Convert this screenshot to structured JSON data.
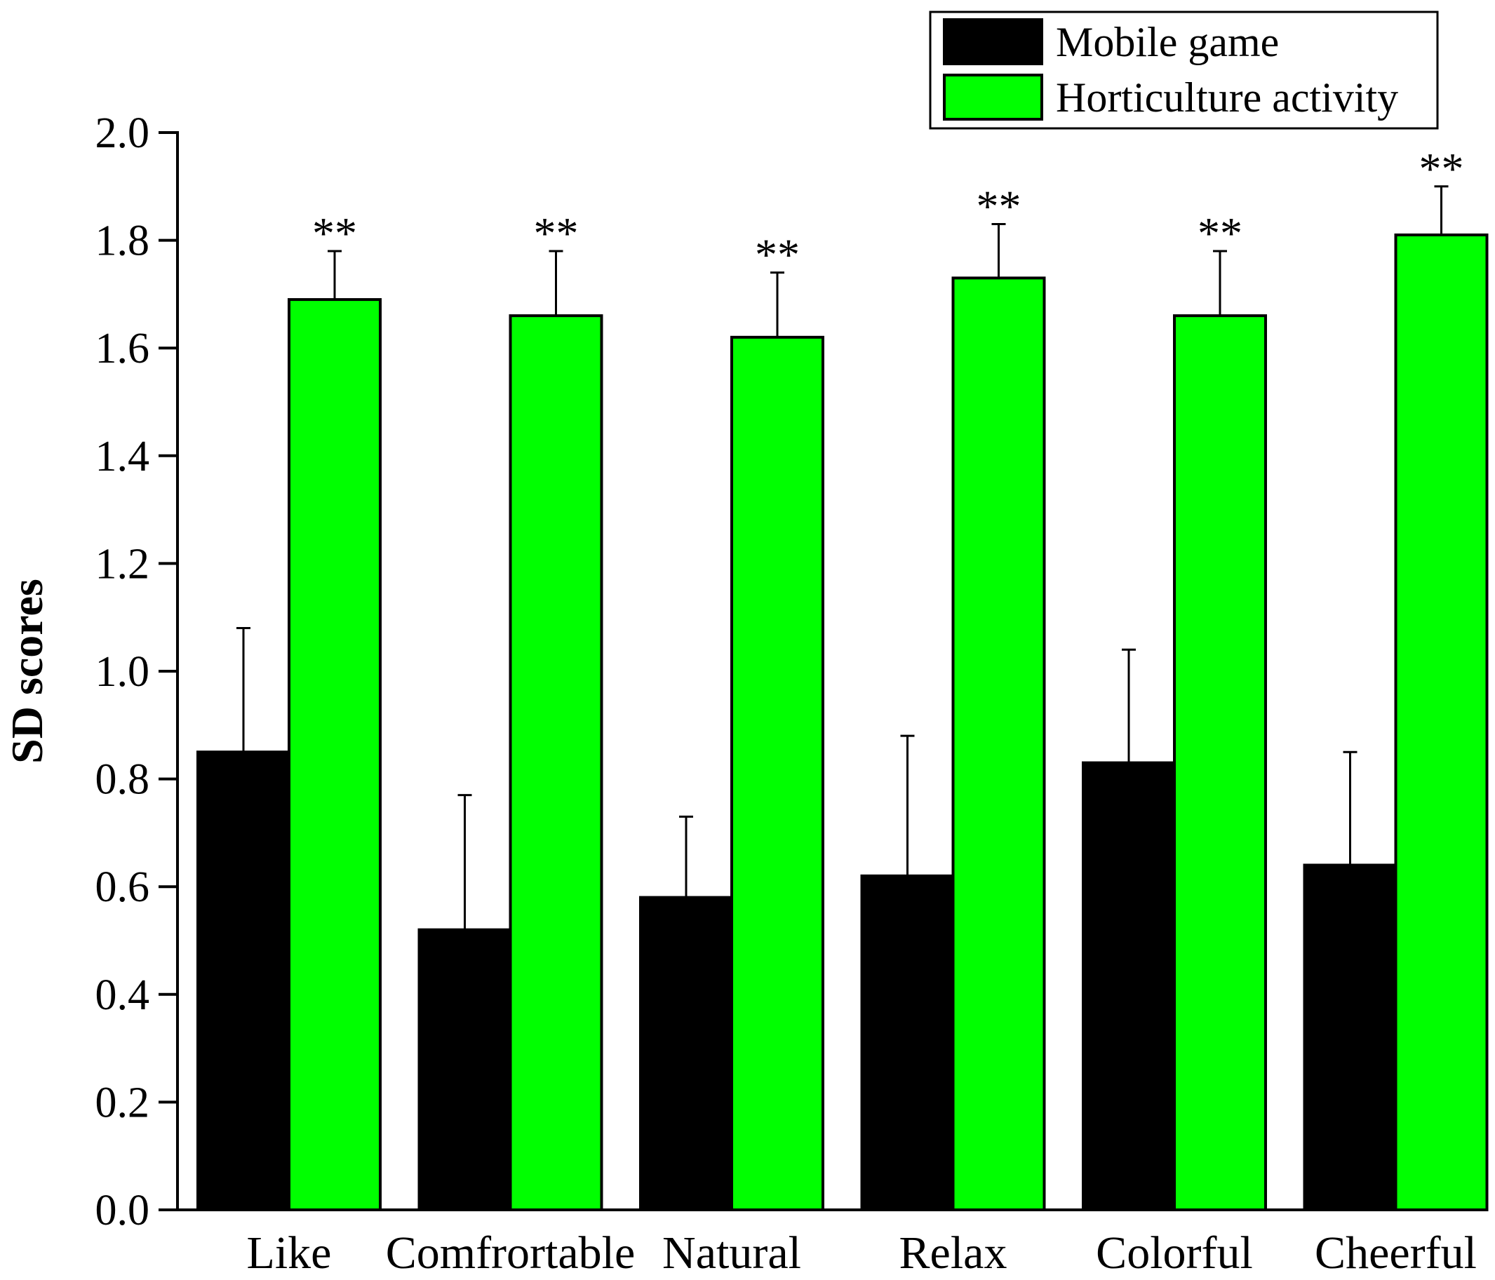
{
  "chart_data": {
    "type": "bar",
    "title": "",
    "xlabel": "",
    "ylabel": "SD scores",
    "ylim": [
      0,
      2.0
    ],
    "yticks": [
      "0.0",
      "0.2",
      "0.4",
      "0.6",
      "0.8",
      "1.0",
      "1.2",
      "1.4",
      "1.6",
      "1.8",
      "2.0"
    ],
    "categories": [
      "Like",
      "Comfrortable",
      "Natural",
      "Relax",
      "Colorful",
      "Cheerful"
    ],
    "series": [
      {
        "name": "Mobile game",
        "color": "#000000",
        "values": [
          0.85,
          0.52,
          0.58,
          0.62,
          0.83,
          0.64
        ],
        "errors": [
          0.23,
          0.25,
          0.15,
          0.26,
          0.21,
          0.21
        ]
      },
      {
        "name": "Horticulture activity",
        "color": "#00ff00",
        "values": [
          1.69,
          1.66,
          1.62,
          1.73,
          1.66,
          1.81
        ],
        "errors": [
          0.09,
          0.12,
          0.12,
          0.1,
          0.12,
          0.09
        ]
      }
    ],
    "annotations": [
      "**",
      "**",
      "**",
      "**",
      "**",
      "**"
    ],
    "legend_position": "top-right",
    "grid": false
  }
}
